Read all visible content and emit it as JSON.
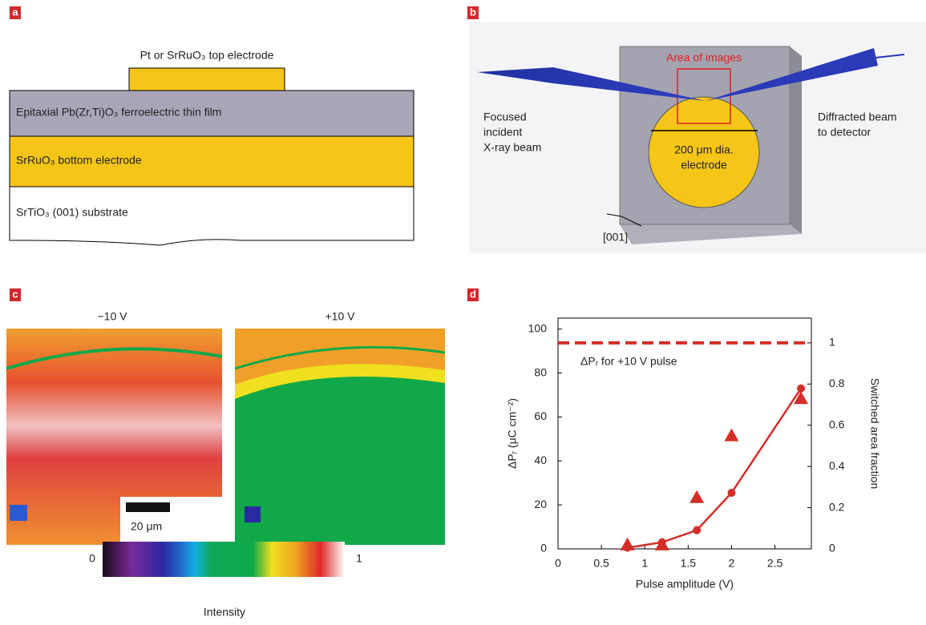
{
  "panels": {
    "a": {
      "label": "a",
      "top_electrode": "Pt or SrRuO₃ top electrode",
      "film": "Epitaxial Pb(Zr,Ti)O₃ ferroelectric thin film",
      "bottom_electrode": "SrRuO₃ bottom electrode",
      "substrate": "SrTiO₃ (001) substrate"
    },
    "b": {
      "label": "b",
      "incident": [
        "Focused",
        "incident",
        "X-ray beam"
      ],
      "area": "Area of images",
      "electrode": [
        "200 μm dia.",
        "electrode"
      ],
      "diffracted": [
        "Diffracted beam",
        "to detector"
      ],
      "direction": "[001]"
    },
    "c": {
      "label": "c",
      "left_title": "−10 V",
      "right_title": "+10 V",
      "scale_bar": "20 μm",
      "colorbar_ticks": [
        0,
        1
      ],
      "colorbar_label": "Intensity"
    }
  },
  "chart_data": {
    "type": "line",
    "label": "d",
    "x": [
      0.8,
      1.2,
      1.6,
      2.0,
      2.8
    ],
    "series": [
      {
        "color": "#d42e2a",
        "marker": "circle",
        "values": [
          0.5,
          3,
          8.5,
          25.5,
          73
        ]
      },
      {
        "color": "#d42e2a",
        "marker": "triangle",
        "line": false,
        "axis": "y2",
        "values": [
          0.02,
          0.02,
          0.25,
          0.55,
          0.73
        ]
      }
    ],
    "reference_line": {
      "value": 1,
      "axis": "y2",
      "color": "#d42e2a",
      "label": "ΔPᵣ for +10 V pulse"
    },
    "xlabel": "Pulse amplitude (V)",
    "ylabel": "ΔPᵣ (μC cm⁻²)",
    "y2label": "Switched area fraction",
    "xlim": [
      0,
      2.92
    ],
    "xticks": [
      0,
      0.5,
      1,
      1.5,
      2,
      2.5
    ],
    "ylim": [
      0,
      105
    ],
    "yticks": [
      0,
      20,
      40,
      60,
      80,
      100
    ],
    "y2lim": [
      0,
      1.12
    ],
    "y2ticks": [
      0,
      0.2,
      0.4,
      0.6,
      0.8,
      1
    ]
  }
}
